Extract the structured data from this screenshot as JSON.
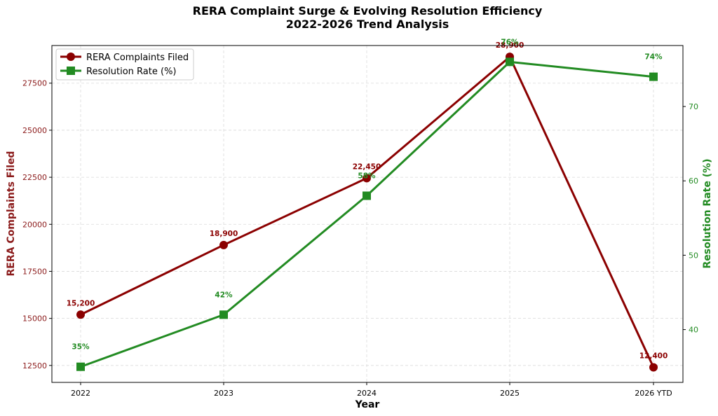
{
  "chart_data": {
    "type": "line",
    "title": "RERA Complaint Surge & Evolving Resolution Efficiency",
    "subtitle": "2022-2026 Trend Analysis",
    "xlabel": "Year",
    "categories": [
      "2022",
      "2023",
      "2024",
      "2025",
      "2026 YTD"
    ],
    "left_axis": {
      "label": "RERA Complaints Filed",
      "ylim": [
        11600,
        29500
      ],
      "ticks": [
        12500,
        15000,
        17500,
        20000,
        22500,
        25000,
        27500
      ],
      "tick_labels": [
        "12500",
        "15000",
        "17500",
        "20000",
        "22500",
        "25000",
        "27500"
      ],
      "color": "#8b1a1a"
    },
    "right_axis": {
      "label": "Resolution Rate (%)",
      "ylim": [
        32.9,
        78.2
      ],
      "ticks": [
        40,
        50,
        60,
        70
      ],
      "tick_labels": [
        "40",
        "50",
        "60",
        "70"
      ],
      "color": "#228b22"
    },
    "series": [
      {
        "name": "RERA Complaints Filed",
        "axis": "left",
        "marker": "circle",
        "color": "#8b0000",
        "values": [
          15200,
          18900,
          22450,
          28900,
          12400
        ],
        "labels": [
          "15,200",
          "18,900",
          "22,450",
          "28,900",
          "12,400"
        ]
      },
      {
        "name": "Resolution Rate (%)",
        "axis": "right",
        "marker": "square",
        "color": "#228b22",
        "values": [
          35,
          42,
          58,
          76,
          74
        ],
        "labels": [
          "35%",
          "42%",
          "58%",
          "76%",
          "74%"
        ]
      }
    ],
    "grid": true,
    "legend": "top-left"
  }
}
